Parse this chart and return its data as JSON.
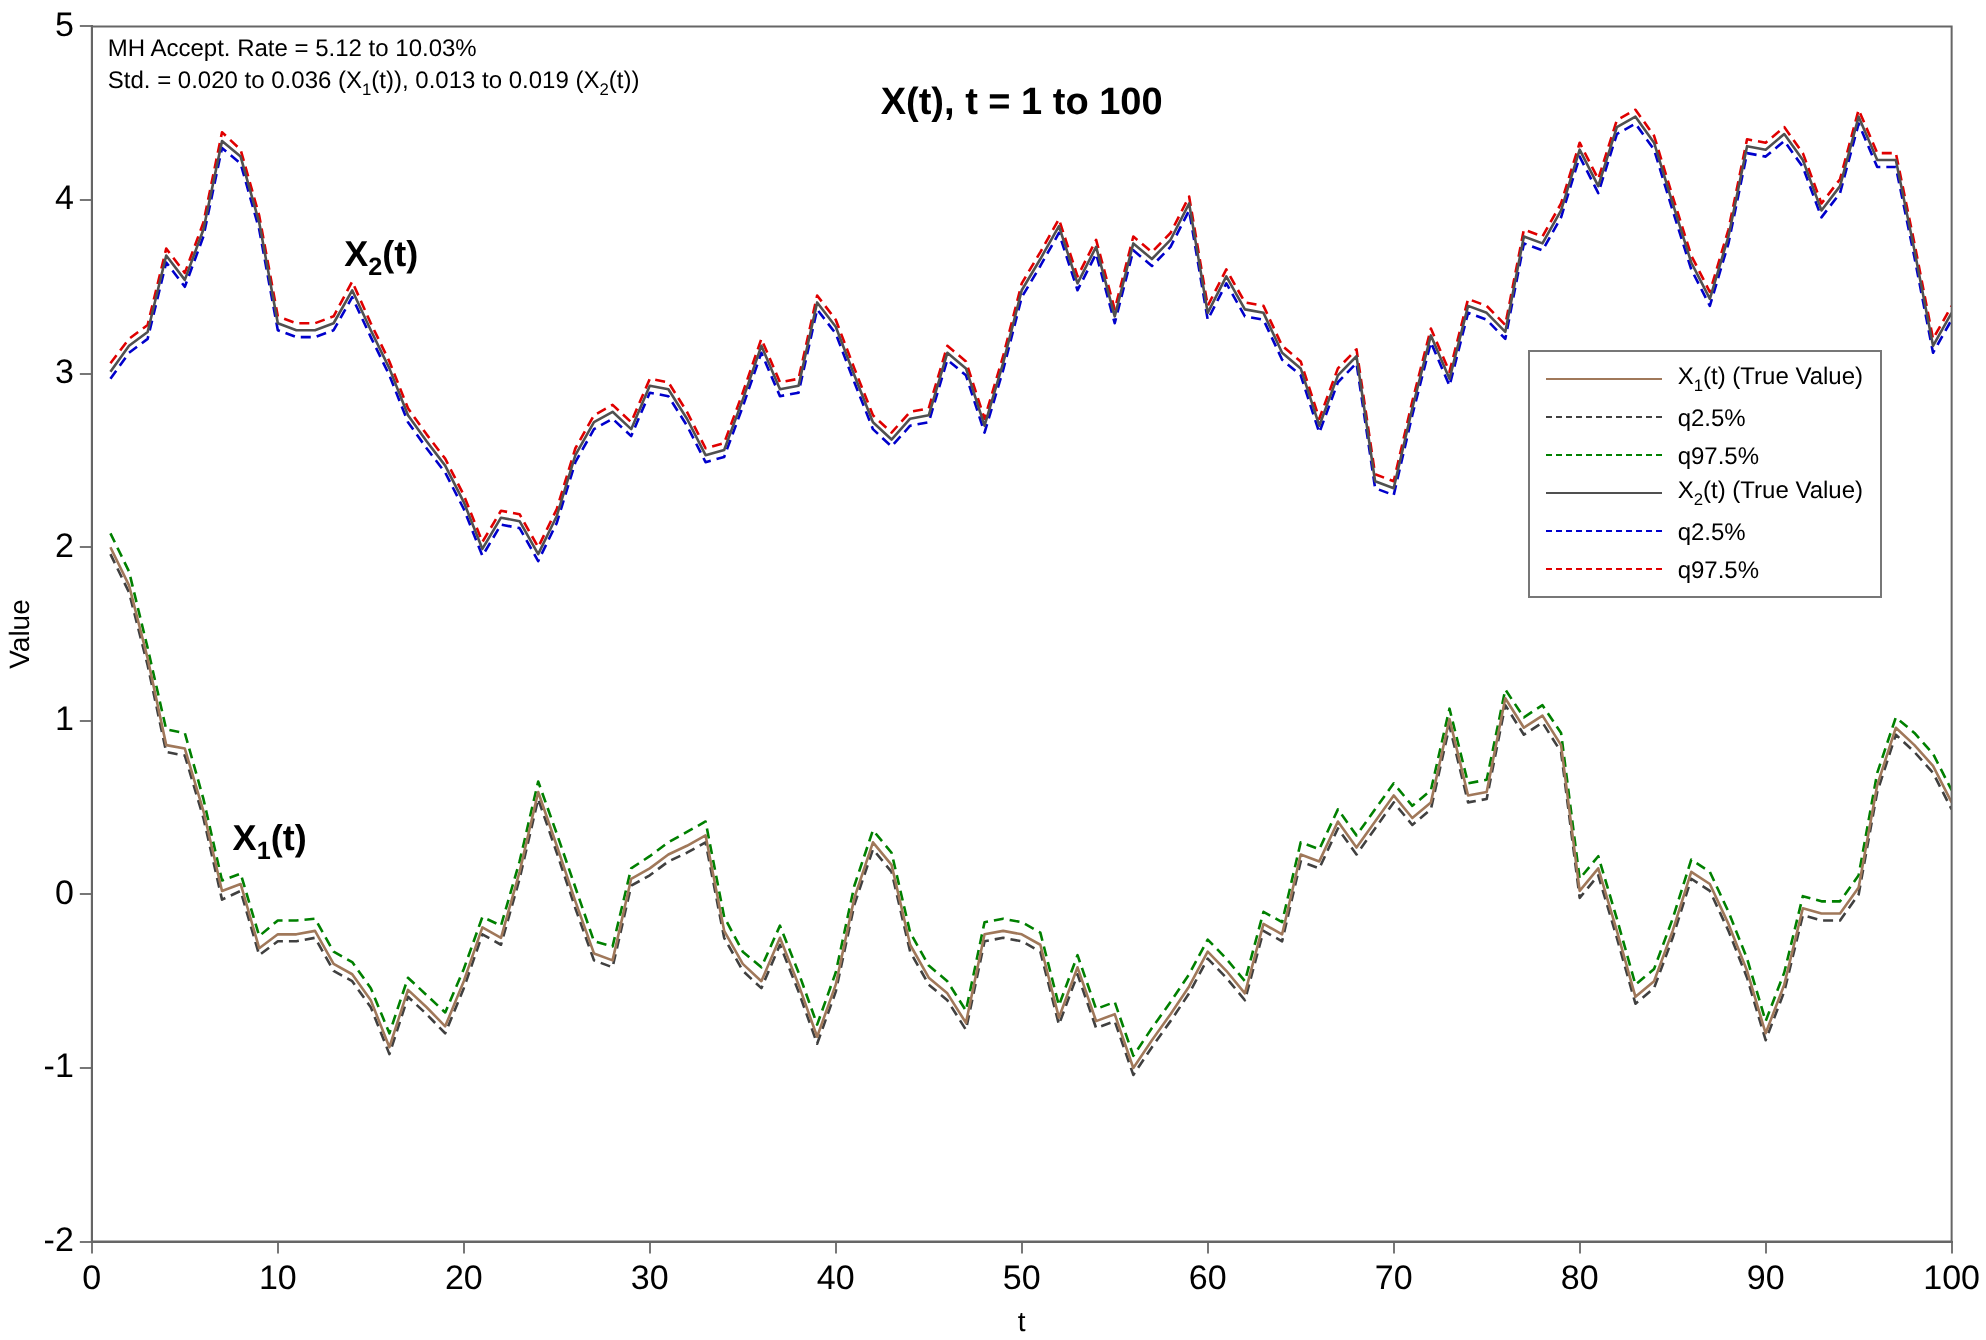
{
  "chart_data": {
    "type": "line",
    "title": "X(t), t = 1 to 100",
    "xlabel": "t",
    "ylabel": "Value",
    "annotations": [
      "MH Accept. Rate = 5.12 to 10.03%",
      "Std. = 0.020 to 0.036 (X$_{1}$(t)), 0.013 to 0.019 (X$_{2}$(t))",
      {
        "text": "X$_{2}$(t)",
        "x": 14,
        "y": 3.48
      },
      {
        "text": "X$_{1}$(t)",
        "x": 8,
        "y": 0.12
      }
    ],
    "x": [
      1,
      2,
      3,
      4,
      5,
      6,
      7,
      8,
      9,
      10,
      11,
      12,
      13,
      14,
      15,
      16,
      17,
      18,
      19,
      20,
      21,
      22,
      23,
      24,
      25,
      26,
      27,
      28,
      29,
      30,
      31,
      32,
      33,
      34,
      35,
      36,
      37,
      38,
      39,
      40,
      41,
      42,
      43,
      44,
      45,
      46,
      47,
      48,
      49,
      50,
      51,
      52,
      53,
      54,
      55,
      56,
      57,
      58,
      59,
      60,
      61,
      62,
      63,
      64,
      65,
      66,
      67,
      68,
      69,
      70,
      71,
      72,
      73,
      74,
      75,
      76,
      77,
      78,
      79,
      80,
      81,
      82,
      83,
      84,
      85,
      86,
      87,
      88,
      89,
      90,
      91,
      92,
      93,
      94,
      95,
      96,
      97,
      98,
      99,
      100
    ],
    "xlim": [
      0,
      100
    ],
    "xticks": [
      0,
      10,
      20,
      30,
      40,
      50,
      60,
      70,
      80,
      90,
      100
    ],
    "ylim": [
      -2,
      5
    ],
    "yticks": [
      -2,
      -1,
      0,
      1,
      2,
      3,
      4,
      5
    ],
    "legend": "right",
    "marker": "none",
    "series": [
      {
        "name": "X$_{1}$(t) (True Value)",
        "color": "#a0785a",
        "line_style": "solid",
        "values": [
          2.0,
          1.78,
          1.36,
          0.86,
          0.84,
          0.48,
          0.02,
          0.06,
          -0.31,
          -0.23,
          -0.23,
          -0.21,
          -0.4,
          -0.46,
          -0.61,
          -0.88,
          -0.55,
          -0.65,
          -0.76,
          -0.5,
          -0.19,
          -0.25,
          0.13,
          0.59,
          0.28,
          -0.04,
          -0.34,
          -0.38,
          0.09,
          0.15,
          0.23,
          0.28,
          0.34,
          -0.21,
          -0.4,
          -0.5,
          -0.25,
          -0.52,
          -0.82,
          -0.52,
          -0.02,
          0.3,
          0.17,
          -0.29,
          -0.48,
          -0.57,
          -0.74,
          -0.23,
          -0.21,
          -0.23,
          -0.29,
          -0.71,
          -0.42,
          -0.73,
          -0.69,
          -1.0,
          -0.84,
          -0.69,
          -0.53,
          -0.33,
          -0.44,
          -0.57,
          -0.17,
          -0.23,
          0.23,
          0.19,
          0.42,
          0.27,
          0.42,
          0.57,
          0.44,
          0.53,
          1.01,
          0.57,
          0.59,
          1.13,
          0.96,
          1.03,
          0.86,
          0.02,
          0.15,
          -0.21,
          -0.59,
          -0.5,
          -0.21,
          0.13,
          0.06,
          -0.17,
          -0.44,
          -0.8,
          -0.52,
          -0.08,
          -0.11,
          -0.11,
          0.04,
          0.63,
          0.96,
          0.86,
          0.74,
          0.53
        ]
      },
      {
        "name": "q2.5%",
        "color": "#404040",
        "line_style": "dashed",
        "values": [
          1.96,
          1.74,
          1.32,
          0.82,
          0.8,
          0.44,
          -0.03,
          0.02,
          -0.35,
          -0.27,
          -0.27,
          -0.25,
          -0.44,
          -0.5,
          -0.65,
          -0.92,
          -0.59,
          -0.69,
          -0.8,
          -0.54,
          -0.23,
          -0.29,
          0.09,
          0.55,
          0.24,
          -0.08,
          -0.38,
          -0.42,
          0.05,
          0.11,
          0.19,
          0.24,
          0.3,
          -0.25,
          -0.44,
          -0.54,
          -0.29,
          -0.56,
          -0.86,
          -0.56,
          -0.06,
          0.26,
          0.13,
          -0.33,
          -0.52,
          -0.61,
          -0.78,
          -0.27,
          -0.25,
          -0.27,
          -0.33,
          -0.75,
          -0.46,
          -0.77,
          -0.73,
          -1.04,
          -0.88,
          -0.73,
          -0.57,
          -0.37,
          -0.48,
          -0.61,
          -0.21,
          -0.27,
          0.19,
          0.15,
          0.38,
          0.23,
          0.38,
          0.53,
          0.4,
          0.49,
          0.97,
          0.53,
          0.55,
          1.09,
          0.92,
          0.99,
          0.82,
          -0.02,
          0.11,
          -0.25,
          -0.63,
          -0.54,
          -0.25,
          0.09,
          0.02,
          -0.21,
          -0.48,
          -0.84,
          -0.56,
          -0.12,
          -0.15,
          -0.15,
          0.0,
          0.59,
          0.92,
          0.82,
          0.7,
          0.49
        ]
      },
      {
        "name": "q97.5%",
        "color": "#008000",
        "line_style": "dashed",
        "values": [
          2.08,
          1.86,
          1.42,
          0.95,
          0.93,
          0.55,
          0.08,
          0.12,
          -0.24,
          -0.15,
          -0.15,
          -0.14,
          -0.33,
          -0.39,
          -0.54,
          -0.8,
          -0.48,
          -0.58,
          -0.68,
          -0.43,
          -0.13,
          -0.18,
          0.19,
          0.65,
          0.35,
          0.04,
          -0.27,
          -0.3,
          0.15,
          0.22,
          0.3,
          0.36,
          0.42,
          -0.13,
          -0.33,
          -0.42,
          -0.18,
          -0.45,
          -0.75,
          -0.45,
          0.05,
          0.37,
          0.24,
          -0.22,
          -0.41,
          -0.5,
          -0.67,
          -0.16,
          -0.14,
          -0.16,
          -0.22,
          -0.64,
          -0.35,
          -0.66,
          -0.62,
          -0.93,
          -0.77,
          -0.62,
          -0.46,
          -0.26,
          -0.37,
          -0.5,
          -0.1,
          -0.16,
          0.3,
          0.26,
          0.49,
          0.34,
          0.49,
          0.64,
          0.51,
          0.6,
          1.07,
          0.64,
          0.66,
          1.18,
          1.02,
          1.09,
          0.93,
          0.09,
          0.22,
          -0.14,
          -0.52,
          -0.43,
          -0.14,
          0.2,
          0.13,
          -0.1,
          -0.37,
          -0.73,
          -0.45,
          -0.01,
          -0.04,
          -0.04,
          0.11,
          0.7,
          1.02,
          0.93,
          0.81,
          0.6
        ]
      },
      {
        "name": "X$_{2}$(t) (True Value)",
        "color": "#505050",
        "line_style": "solid",
        "values": [
          3.01,
          3.16,
          3.24,
          3.68,
          3.54,
          3.83,
          4.34,
          4.25,
          3.87,
          3.29,
          3.25,
          3.25,
          3.29,
          3.48,
          3.25,
          3.03,
          2.76,
          2.61,
          2.47,
          2.26,
          1.99,
          2.17,
          2.15,
          1.96,
          2.18,
          2.53,
          2.72,
          2.78,
          2.68,
          2.93,
          2.91,
          2.74,
          2.53,
          2.56,
          2.85,
          3.16,
          2.91,
          2.93,
          3.41,
          3.27,
          2.99,
          2.72,
          2.62,
          2.74,
          2.76,
          3.12,
          3.03,
          2.7,
          3.06,
          3.48,
          3.66,
          3.85,
          3.52,
          3.73,
          3.33,
          3.75,
          3.66,
          3.77,
          3.98,
          3.35,
          3.56,
          3.37,
          3.35,
          3.12,
          3.03,
          2.7,
          2.99,
          3.1,
          2.38,
          2.34,
          2.8,
          3.22,
          2.97,
          3.39,
          3.35,
          3.24,
          3.79,
          3.75,
          3.94,
          4.29,
          4.08,
          4.42,
          4.48,
          4.33,
          3.98,
          3.64,
          3.43,
          3.79,
          4.31,
          4.29,
          4.38,
          4.23,
          3.94,
          4.08,
          4.48,
          4.23,
          4.23,
          3.71,
          3.16,
          3.35
        ]
      },
      {
        "name": "q2.5%",
        "color": "#0000cc",
        "line_style": "dashed",
        "values": [
          2.97,
          3.12,
          3.2,
          3.64,
          3.5,
          3.79,
          4.3,
          4.21,
          3.83,
          3.25,
          3.21,
          3.21,
          3.25,
          3.44,
          3.21,
          2.99,
          2.72,
          2.57,
          2.43,
          2.22,
          1.95,
          2.13,
          2.11,
          1.92,
          2.14,
          2.49,
          2.68,
          2.74,
          2.64,
          2.89,
          2.87,
          2.7,
          2.49,
          2.52,
          2.81,
          3.12,
          2.87,
          2.89,
          3.37,
          3.23,
          2.95,
          2.68,
          2.58,
          2.7,
          2.72,
          3.08,
          2.99,
          2.66,
          3.02,
          3.44,
          3.62,
          3.81,
          3.48,
          3.69,
          3.29,
          3.71,
          3.62,
          3.73,
          3.94,
          3.31,
          3.52,
          3.33,
          3.31,
          3.08,
          2.99,
          2.66,
          2.95,
          3.06,
          2.34,
          2.3,
          2.76,
          3.18,
          2.93,
          3.35,
          3.31,
          3.2,
          3.75,
          3.71,
          3.9,
          4.25,
          4.04,
          4.38,
          4.44,
          4.29,
          3.94,
          3.6,
          3.39,
          3.75,
          4.27,
          4.25,
          4.34,
          4.19,
          3.9,
          4.04,
          4.44,
          4.19,
          4.19,
          3.67,
          3.12,
          3.31
        ]
      },
      {
        "name": "q97.5%",
        "color": "#e00000",
        "line_style": "dashed",
        "values": [
          3.06,
          3.2,
          3.28,
          3.72,
          3.58,
          3.87,
          4.39,
          4.29,
          3.91,
          3.33,
          3.29,
          3.29,
          3.33,
          3.53,
          3.29,
          3.07,
          2.8,
          2.65,
          2.51,
          2.3,
          2.03,
          2.21,
          2.19,
          2.0,
          2.22,
          2.57,
          2.76,
          2.82,
          2.72,
          2.97,
          2.95,
          2.78,
          2.57,
          2.6,
          2.89,
          3.2,
          2.95,
          2.97,
          3.45,
          3.31,
          3.03,
          2.76,
          2.66,
          2.78,
          2.8,
          3.16,
          3.07,
          2.74,
          3.1,
          3.52,
          3.7,
          3.89,
          3.56,
          3.77,
          3.37,
          3.79,
          3.7,
          3.81,
          4.02,
          3.39,
          3.6,
          3.41,
          3.39,
          3.16,
          3.07,
          2.74,
          3.03,
          3.14,
          2.42,
          2.38,
          2.84,
          3.26,
          3.01,
          3.43,
          3.39,
          3.28,
          3.83,
          3.79,
          3.98,
          4.33,
          4.12,
          4.46,
          4.52,
          4.37,
          4.02,
          3.68,
          3.47,
          3.83,
          4.35,
          4.33,
          4.42,
          4.27,
          3.98,
          4.12,
          4.52,
          4.27,
          4.27,
          3.75,
          3.2,
          3.39
        ]
      }
    ]
  }
}
